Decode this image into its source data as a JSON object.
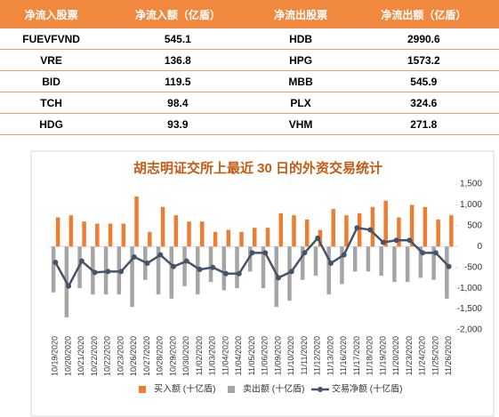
{
  "table": {
    "header": [
      "净流入股票",
      "净流入额（亿盾）",
      "净流出股票",
      "净流出额（亿盾）"
    ],
    "rows": [
      [
        "FUEVFVND",
        "545.1",
        "HDB",
        "2990.6"
      ],
      [
        "VRE",
        "136.8",
        "HPG",
        "1573.2"
      ],
      [
        "BID",
        "119.5",
        "MBB",
        "545.9"
      ],
      [
        "TCH",
        "98.4",
        "PLX",
        "324.6"
      ],
      [
        "HDG",
        "93.9",
        "VHM",
        "271.8"
      ]
    ]
  },
  "chart_data": {
    "type": "bar",
    "title": "胡志明证交所上最近 30 日的外资交易统计",
    "categories": [
      "10/19/2020",
      "10/20/2020",
      "10/21/2020",
      "10/22/2020",
      "10/22/2020",
      "10/23/2020",
      "10/26/2020",
      "10/27/2020",
      "10/28/2020",
      "10/29/2020",
      "10/30/2020",
      "11/02/2020",
      "11/03/2020",
      "11/04/2020",
      "11/04/2020",
      "11/05/2020",
      "11/06/2020",
      "11/09/2020",
      "11/10/2020",
      "11/11/2020",
      "11/12/2020",
      "11/13/2020",
      "11/16/2020",
      "11/17/2020",
      "11/18/2020",
      "11/19/2020",
      "11/20/2020",
      "11/23/2020",
      "11/24/2020",
      "11/25/2020",
      "11/26/2020"
    ],
    "series": [
      {
        "name": "买入额 (十亿盾)",
        "type": "bar",
        "color": "#ed7d31",
        "values": [
          700,
          750,
          600,
          550,
          550,
          550,
          1200,
          350,
          950,
          750,
          600,
          600,
          350,
          400,
          350,
          450,
          450,
          800,
          750,
          650,
          400,
          900,
          750,
          800,
          950,
          1100,
          700,
          1000,
          950,
          650,
          750
        ]
      },
      {
        "name": "卖出额 (十亿盾)",
        "type": "bar",
        "color": "#a5a5a5",
        "values": [
          -1100,
          -1700,
          -1000,
          -1150,
          -1150,
          -1150,
          -1450,
          -800,
          -1150,
          -1250,
          -950,
          -1150,
          -850,
          -1050,
          -1000,
          -600,
          -1000,
          -1450,
          -1300,
          -800,
          -700,
          -1150,
          -900,
          -600,
          -600,
          -700,
          -850,
          -850,
          -750,
          -800,
          -1250
        ]
      },
      {
        "name": "交易净额 (十亿盾)",
        "type": "line",
        "color": "#44546a",
        "values": [
          -380,
          -950,
          -350,
          -620,
          -600,
          -600,
          -250,
          -400,
          -200,
          -480,
          -350,
          -550,
          -500,
          -650,
          -650,
          -150,
          -150,
          -750,
          -600,
          -150,
          200,
          -400,
          -200,
          450,
          400,
          100,
          150,
          150,
          -150,
          -150,
          -480
        ]
      }
    ],
    "ylim": [
      -2000,
      1500
    ],
    "yticks": [
      {
        "value": -2000,
        "label": "-2,000"
      },
      {
        "value": -1500,
        "label": "-1,500"
      },
      {
        "value": -1000,
        "label": "-1,000"
      },
      -500,
      0,
      500,
      {
        "value": 1000,
        "label": "1,000"
      },
      {
        "value": 1500,
        "label": "1,500"
      }
    ]
  }
}
